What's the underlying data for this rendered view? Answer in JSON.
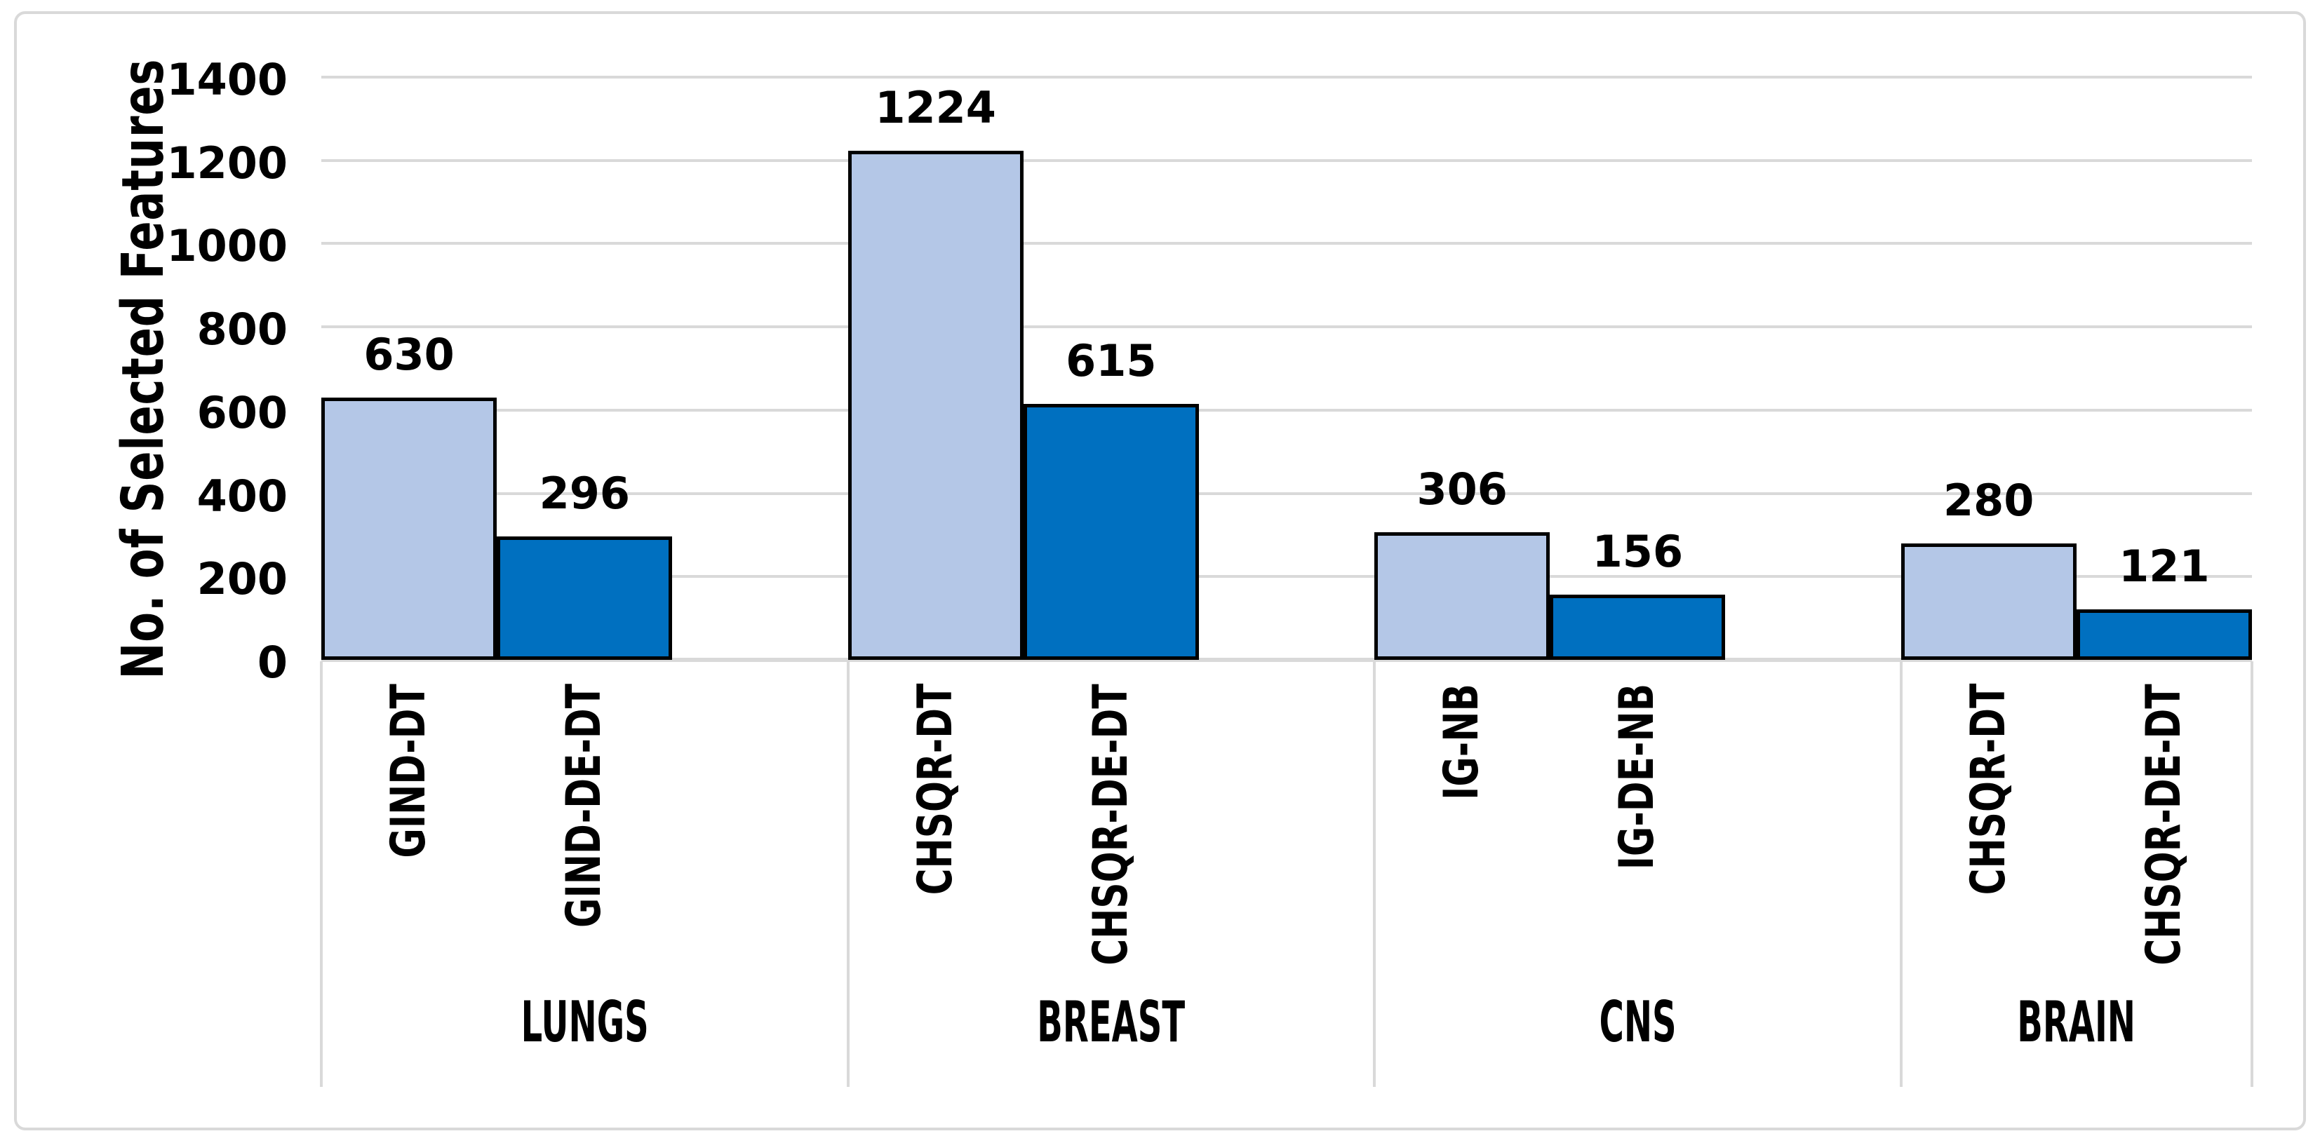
{
  "chart_data": {
    "type": "bar",
    "title": "",
    "ylabel": "No. of Selected Features",
    "xlabel": "",
    "ylim": [
      0,
      1400
    ],
    "yticks": [
      0,
      200,
      400,
      600,
      800,
      1000,
      1200,
      1400
    ],
    "grid": true,
    "legend": "none",
    "groups": [
      {
        "category": "LUNGS",
        "bars": [
          {
            "label": "GIND-DT",
            "value": 630,
            "color": "light"
          },
          {
            "label": "GIND-DE-DT",
            "value": 296,
            "color": "dark"
          }
        ]
      },
      {
        "category": "BREAST",
        "bars": [
          {
            "label": "CHSQR-DT",
            "value": 1224,
            "color": "light"
          },
          {
            "label": "CHSQR-DE-DT",
            "value": 615,
            "color": "dark"
          }
        ]
      },
      {
        "category": "CNS",
        "bars": [
          {
            "label": "IG-NB",
            "value": 306,
            "color": "light"
          },
          {
            "label": "IG-DE-NB",
            "value": 156,
            "color": "dark"
          }
        ]
      },
      {
        "category": "BRAIN",
        "bars": [
          {
            "label": "CHSQR-DT",
            "value": 280,
            "color": "light"
          },
          {
            "label": "CHSQR-DE-DT",
            "value": 121,
            "color": "dark"
          }
        ]
      }
    ],
    "colors": {
      "light": "#b4c7e7",
      "dark": "#0070c0",
      "bar_border": "#000000",
      "gridline": "#d9d9d9",
      "frame_border": "#d9d9d9",
      "text": "#000000"
    }
  }
}
